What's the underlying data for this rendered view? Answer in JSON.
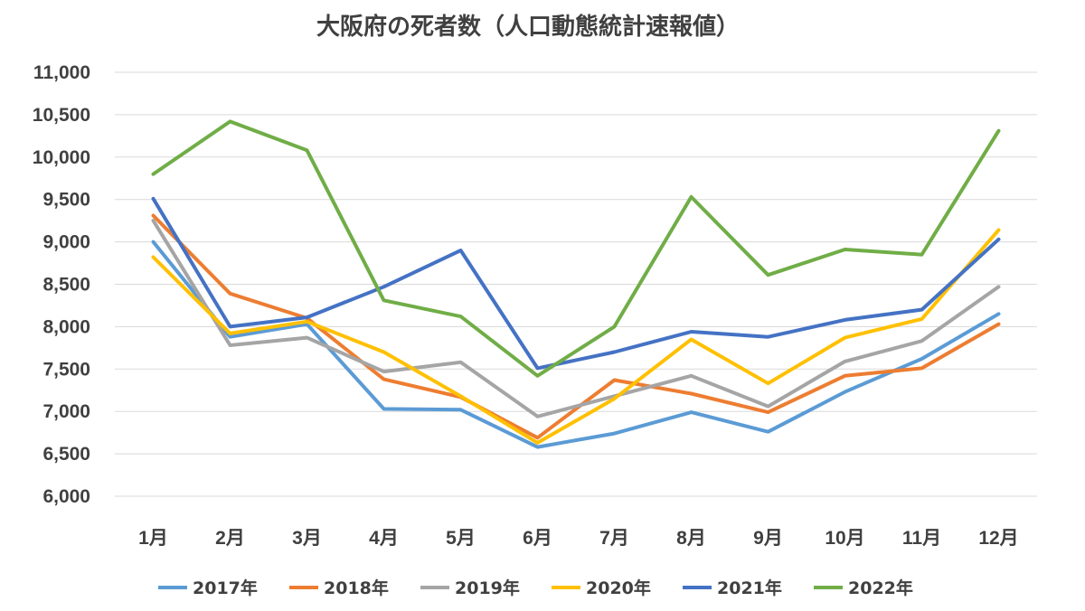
{
  "chart_data": {
    "type": "line",
    "title": "大阪府の死者数（人口動態統計速報値）",
    "xlabel": "",
    "ylabel": "",
    "ylim": [
      6000,
      11000
    ],
    "y_ticks": [
      6000,
      6500,
      7000,
      7500,
      8000,
      8500,
      9000,
      9500,
      10000,
      10500,
      11000
    ],
    "y_tick_labels": [
      "6,000",
      "6,500",
      "7,000",
      "7,500",
      "8,000",
      "8,500",
      "9,000",
      "9,500",
      "10,000",
      "10,500",
      "11,000"
    ],
    "grid": true,
    "legend_position": "bottom",
    "categories": [
      "1月",
      "2月",
      "3月",
      "4月",
      "5月",
      "6月",
      "7月",
      "8月",
      "9月",
      "10月",
      "11月",
      "12月"
    ],
    "series": [
      {
        "name": "2017年",
        "color": "#5b9bd5",
        "values": [
          9000,
          7880,
          8030,
          7030,
          7020,
          6580,
          6740,
          6990,
          6760,
          7230,
          7620,
          8150
        ]
      },
      {
        "name": "2018年",
        "color": "#ed7d31",
        "values": [
          9310,
          8390,
          8100,
          7380,
          7170,
          6690,
          7370,
          7210,
          6990,
          7420,
          7510,
          8030
        ]
      },
      {
        "name": "2019年",
        "color": "#a5a5a5",
        "values": [
          9250,
          7780,
          7870,
          7470,
          7580,
          6940,
          7180,
          7420,
          7060,
          7590,
          7830,
          8470
        ]
      },
      {
        "name": "2020年",
        "color": "#ffc000",
        "values": [
          8820,
          7920,
          8060,
          7700,
          7180,
          6630,
          7150,
          7850,
          7330,
          7870,
          8090,
          9140
        ]
      },
      {
        "name": "2021年",
        "color": "#4472c4",
        "values": [
          9510,
          8000,
          8110,
          8470,
          8900,
          7510,
          7700,
          7940,
          7880,
          8080,
          8200,
          9030
        ]
      },
      {
        "name": "2022年",
        "color": "#70ad47",
        "values": [
          9800,
          10420,
          10080,
          8310,
          8120,
          7420,
          8000,
          9530,
          8610,
          8910,
          8850,
          10310
        ]
      }
    ]
  }
}
